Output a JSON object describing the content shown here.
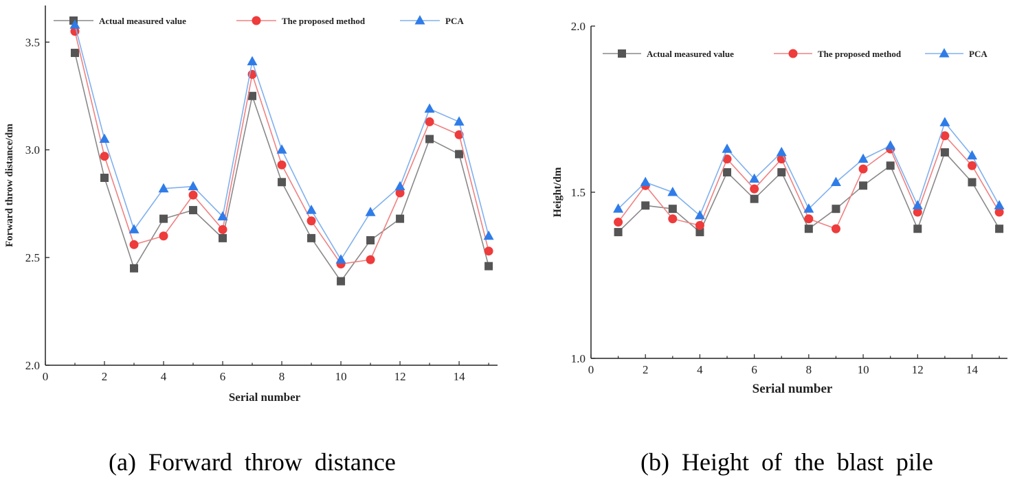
{
  "chart_data": [
    {
      "type": "line",
      "xlabel": "Serial number",
      "ylabel": "Forward throw distance/dm",
      "xlim": [
        0,
        15.3
      ],
      "ylim": [
        2.0,
        3.67
      ],
      "xticks": [
        0,
        2,
        4,
        6,
        8,
        10,
        12,
        14
      ],
      "yticks": [
        2.0,
        2.5,
        3.0,
        3.5
      ],
      "ytick_labels": [
        "2.0",
        "2.5",
        "3.0",
        "3.5"
      ],
      "legend_position": "top",
      "x": [
        1,
        2,
        3,
        4,
        5,
        6,
        7,
        8,
        9,
        10,
        11,
        12,
        13,
        14,
        15
      ],
      "series": [
        {
          "name": "Actual measured value",
          "marker": "square",
          "color": "#555555",
          "line_color": "#888888",
          "values": [
            3.45,
            2.87,
            2.45,
            2.68,
            2.72,
            2.59,
            3.25,
            2.85,
            2.59,
            2.39,
            2.58,
            2.68,
            3.05,
            2.98,
            2.46
          ]
        },
        {
          "name": "The proposed method",
          "marker": "circle",
          "color": "#ee3b3b",
          "line_color": "#f08080",
          "values": [
            3.55,
            2.97,
            2.56,
            2.6,
            2.79,
            2.63,
            3.35,
            2.93,
            2.67,
            2.47,
            2.49,
            2.8,
            3.13,
            3.07,
            2.53
          ]
        },
        {
          "name": "PCA",
          "marker": "triangle",
          "color": "#2f7ce8",
          "line_color": "#7fb0ee",
          "values": [
            3.58,
            3.05,
            2.63,
            2.82,
            2.83,
            2.69,
            3.41,
            3.0,
            2.72,
            2.49,
            2.71,
            2.83,
            3.19,
            3.13,
            2.6
          ]
        }
      ]
    },
    {
      "type": "line",
      "xlabel": "Serial number",
      "ylabel": "Height/dm",
      "xlim": [
        0,
        15.3
      ],
      "ylim": [
        1.0,
        2.0
      ],
      "xticks": [
        0,
        2,
        4,
        6,
        8,
        10,
        12,
        14
      ],
      "yticks": [
        1.0,
        1.5,
        2.0
      ],
      "ytick_labels": [
        "1.0",
        "1.5",
        "2.0"
      ],
      "legend_position": "top",
      "x": [
        1,
        2,
        3,
        4,
        5,
        6,
        7,
        8,
        9,
        10,
        11,
        12,
        13,
        14,
        15
      ],
      "series": [
        {
          "name": "Actual measured value",
          "marker": "square",
          "color": "#555555",
          "line_color": "#888888",
          "values": [
            1.38,
            1.46,
            1.45,
            1.38,
            1.56,
            1.48,
            1.56,
            1.39,
            1.45,
            1.52,
            1.58,
            1.39,
            1.62,
            1.53,
            1.39
          ]
        },
        {
          "name": "The proposed method",
          "marker": "circle",
          "color": "#ee3b3b",
          "line_color": "#f08080",
          "values": [
            1.41,
            1.52,
            1.42,
            1.4,
            1.6,
            1.51,
            1.6,
            1.42,
            1.39,
            1.57,
            1.63,
            1.44,
            1.67,
            1.58,
            1.44
          ]
        },
        {
          "name": "PCA",
          "marker": "triangle",
          "color": "#2f7ce8",
          "line_color": "#7fb0ee",
          "values": [
            1.45,
            1.53,
            1.5,
            1.43,
            1.63,
            1.54,
            1.62,
            1.45,
            1.53,
            1.6,
            1.64,
            1.46,
            1.71,
            1.61,
            1.46
          ]
        }
      ]
    }
  ],
  "captions": {
    "a": "(a)  Forward  throw  distance",
    "b": "(b)  Height  of  the  blast  pile"
  }
}
